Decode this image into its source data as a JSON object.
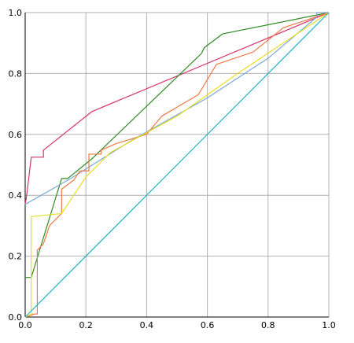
{
  "chart_data": {
    "type": "line",
    "title": "",
    "xlabel": "",
    "ylabel": "",
    "xlim": [
      0.0,
      1.0
    ],
    "ylim": [
      0.0,
      1.0
    ],
    "grid": true,
    "legend": "none",
    "x_ticks": [
      "0.0",
      "0.2",
      "0.4",
      "0.6",
      "0.8",
      "1.0"
    ],
    "y_ticks": [
      "0.0",
      "0.2",
      "0.4",
      "0.6",
      "0.8",
      "1.0"
    ],
    "tick_values": [
      0.0,
      0.2,
      0.4,
      0.6,
      0.8,
      1.0
    ],
    "series": [
      {
        "color": "#d6336c",
        "points": [
          [
            0.0,
            0.37
          ],
          [
            0.005,
            0.4
          ],
          [
            0.02,
            0.525
          ],
          [
            0.06,
            0.525
          ],
          [
            0.06,
            0.548
          ],
          [
            0.22,
            0.675
          ],
          [
            1.0,
            1.0
          ]
        ]
      },
      {
        "color": "#2e8b22",
        "points": [
          [
            0.0,
            0.13
          ],
          [
            0.02,
            0.13
          ],
          [
            0.12,
            0.455
          ],
          [
            0.14,
            0.455
          ],
          [
            0.22,
            0.52
          ],
          [
            0.58,
            0.865
          ],
          [
            0.59,
            0.885
          ],
          [
            0.65,
            0.93
          ],
          [
            1.0,
            1.0
          ]
        ]
      },
      {
        "color": "#7aa6d6",
        "points": [
          [
            0.0,
            0.37
          ],
          [
            0.15,
            0.455
          ],
          [
            0.35,
            0.58
          ],
          [
            0.6,
            0.72
          ],
          [
            0.8,
            0.85
          ],
          [
            0.96,
            0.985
          ],
          [
            0.96,
            1.0
          ],
          [
            1.0,
            1.0
          ]
        ]
      },
      {
        "color": "#f07848",
        "points": [
          [
            0.0,
            0.0
          ],
          [
            0.03,
            0.01
          ],
          [
            0.04,
            0.01
          ],
          [
            0.04,
            0.22
          ],
          [
            0.06,
            0.24
          ],
          [
            0.07,
            0.27
          ],
          [
            0.08,
            0.3
          ],
          [
            0.12,
            0.34
          ],
          [
            0.12,
            0.42
          ],
          [
            0.16,
            0.45
          ],
          [
            0.18,
            0.48
          ],
          [
            0.21,
            0.48
          ],
          [
            0.21,
            0.535
          ],
          [
            0.25,
            0.535
          ],
          [
            0.25,
            0.548
          ],
          [
            0.3,
            0.57
          ],
          [
            0.4,
            0.6
          ],
          [
            0.45,
            0.66
          ],
          [
            0.57,
            0.73
          ],
          [
            0.63,
            0.83
          ],
          [
            0.75,
            0.87
          ],
          [
            0.85,
            0.95
          ],
          [
            1.0,
            1.0
          ]
        ]
      },
      {
        "color": "#e8e020",
        "points": [
          [
            0.0,
            0.0
          ],
          [
            0.02,
            0.01
          ],
          [
            0.02,
            0.33
          ],
          [
            0.12,
            0.34
          ],
          [
            0.2,
            0.46
          ],
          [
            0.28,
            0.54
          ],
          [
            0.5,
            0.66
          ],
          [
            0.7,
            0.8
          ],
          [
            1.0,
            1.0
          ]
        ]
      },
      {
        "color": "#22b0c8",
        "points": [
          [
            0.0,
            0.0
          ],
          [
            1.0,
            1.0
          ]
        ]
      }
    ]
  }
}
